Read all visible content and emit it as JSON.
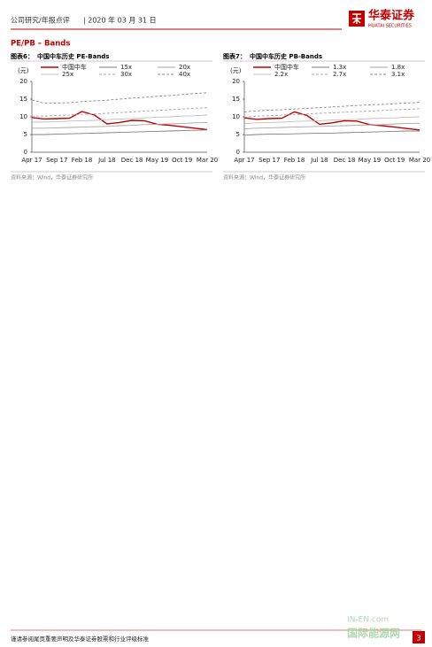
{
  "header": {
    "category": "公司研究/年报点评",
    "date": "| 2020 年 03 月 31 日",
    "logo": "华泰证券",
    "logo_en": "HUATAI SECURITIES"
  },
  "section_title": "PE/PB – Bands",
  "chart_data": [
    {
      "type": "line",
      "label": "图表6：",
      "title": "中国中车历史 PE-Bands",
      "y_label": "(元)",
      "categories": [
        "Apr 17",
        null,
        "Sep 17",
        null,
        "Feb 18",
        null,
        "Jul 18",
        null,
        "Dec 18",
        null,
        "May 19",
        null,
        "Oct 19",
        null,
        "Mar 20"
      ],
      "ylim": [
        0,
        20
      ],
      "yticks": [
        0,
        5,
        10,
        15,
        20
      ],
      "series": [
        {
          "name": "中国中车",
          "color": "#c00000",
          "dash": false,
          "values": [
            9.8,
            9.4,
            9.5,
            9.6,
            11.5,
            10.5,
            8.0,
            8.4,
            9.0,
            8.9,
            7.9,
            7.6,
            7.2,
            6.8,
            6.4
          ]
        },
        {
          "name": "15x",
          "color": "#7f7f7f",
          "dash": false,
          "values": [
            5.0,
            5.0,
            5.1,
            5.2,
            5.3,
            5.4,
            5.5,
            5.6,
            5.7,
            5.8,
            5.9,
            6.0,
            6.1,
            6.2,
            6.3
          ]
        },
        {
          "name": "20x",
          "color": "#a6a6a6",
          "dash": false,
          "values": [
            6.8,
            6.8,
            6.9,
            7.0,
            7.1,
            7.2,
            7.3,
            7.5,
            7.6,
            7.8,
            7.9,
            8.0,
            8.1,
            8.3,
            8.4
          ]
        },
        {
          "name": "25x",
          "color": "#bfbfbf",
          "dash": false,
          "values": [
            8.5,
            8.5,
            8.6,
            8.8,
            8.9,
            9.0,
            9.2,
            9.4,
            9.5,
            9.7,
            9.9,
            10.0,
            10.2,
            10.3,
            10.5
          ]
        },
        {
          "name": "30x",
          "color": "#a6a6a6",
          "dash": true,
          "values": [
            10.2,
            10.2,
            10.4,
            10.5,
            10.7,
            10.8,
            11.0,
            11.2,
            11.4,
            11.6,
            11.8,
            12.0,
            12.2,
            12.4,
            12.6
          ]
        },
        {
          "name": "40x",
          "color": "#8c8c8c",
          "dash": true,
          "values": [
            14.8,
            13.8,
            13.9,
            14.0,
            14.3,
            14.5,
            14.7,
            15.0,
            15.3,
            15.5,
            15.8,
            16.0,
            16.3,
            16.6,
            16.8
          ]
        }
      ],
      "source": "资料来源：Wind，华泰证券研究所"
    },
    {
      "type": "line",
      "label": "图表7：",
      "title": "中国中车历史 PB-Bands",
      "y_label": "(元)",
      "categories": [
        "Apr 17",
        null,
        "Sep 17",
        null,
        "Feb 18",
        null,
        "Jul 18",
        null,
        "Dec 18",
        null,
        "May 19",
        null,
        "Oct 19",
        null,
        "Mar 20"
      ],
      "ylim": [
        0,
        20
      ],
      "yticks": [
        0,
        5,
        10,
        15,
        20
      ],
      "series": [
        {
          "name": "中国中车",
          "color": "#c00000",
          "dash": false,
          "values": [
            9.7,
            9.3,
            9.5,
            9.6,
            11.4,
            10.4,
            7.9,
            8.3,
            8.9,
            8.8,
            7.8,
            7.5,
            7.1,
            6.7,
            6.3
          ]
        },
        {
          "name": "1.3x",
          "color": "#7f7f7f",
          "dash": false,
          "values": [
            4.8,
            5.0,
            5.1,
            5.1,
            5.2,
            5.3,
            5.4,
            5.4,
            5.5,
            5.6,
            5.7,
            5.8,
            5.9,
            6.0,
            6.0
          ]
        },
        {
          "name": "1.8x",
          "color": "#a6a6a6",
          "dash": false,
          "values": [
            6.6,
            6.8,
            6.9,
            7.0,
            7.1,
            7.2,
            7.3,
            7.4,
            7.5,
            7.6,
            7.7,
            7.8,
            8.0,
            8.1,
            8.2
          ]
        },
        {
          "name": "2.2x",
          "color": "#bfbfbf",
          "dash": false,
          "values": [
            8.1,
            8.3,
            8.4,
            8.5,
            8.7,
            8.8,
            8.9,
            9.1,
            9.2,
            9.3,
            9.5,
            9.6,
            9.7,
            9.9,
            10.0
          ]
        },
        {
          "name": "2.7x",
          "color": "#a6a6a6",
          "dash": true,
          "values": [
            9.9,
            10.2,
            10.3,
            10.5,
            10.6,
            10.8,
            11.0,
            11.1,
            11.3,
            11.5,
            11.6,
            11.8,
            12.0,
            12.1,
            12.3
          ]
        },
        {
          "name": "3.1x",
          "color": "#8c8c8c",
          "dash": true,
          "values": [
            11.4,
            11.7,
            11.9,
            12.0,
            12.2,
            12.4,
            12.6,
            12.8,
            13.0,
            13.2,
            13.4,
            13.5,
            13.7,
            13.9,
            14.1
          ]
        }
      ],
      "source": "资料来源：Wind，华泰证券研究所"
    }
  ],
  "footer": {
    "note": "谨请参阅尾页重要声明及华泰证券股票和行业评级标准",
    "page": "3"
  },
  "watermark": {
    "site": "IN-EN.com",
    "name": "国际能源网"
  }
}
